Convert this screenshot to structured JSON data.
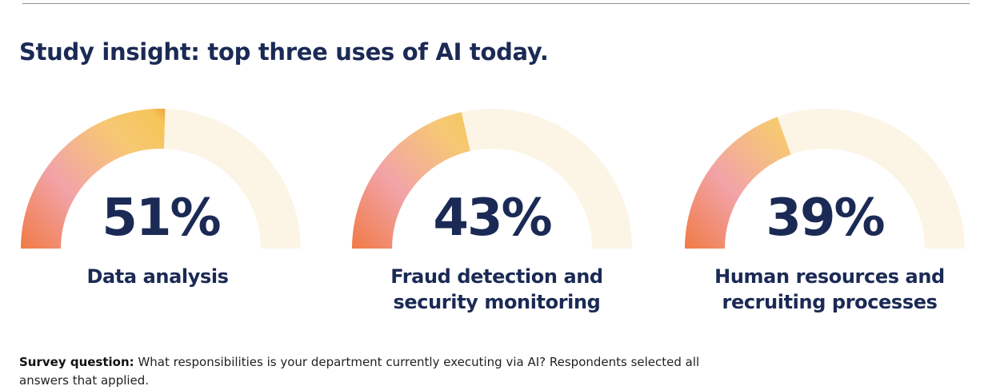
{
  "title": "Study insight: top three uses of AI today.",
  "chart_data": [
    {
      "type": "gauge",
      "categories": [
        "Data analysis"
      ],
      "values": [
        51
      ],
      "value_labels": [
        "51%"
      ],
      "ylim": [
        0,
        100
      ]
    },
    {
      "type": "gauge",
      "categories": [
        "Fraud detection and security monitoring"
      ],
      "values": [
        43
      ],
      "value_labels": [
        "43%"
      ],
      "ylim": [
        0,
        100
      ]
    },
    {
      "type": "gauge",
      "categories": [
        "Human resources and recruiting processes"
      ],
      "values": [
        39
      ],
      "value_labels": [
        "39%"
      ],
      "ylim": [
        0,
        100
      ]
    }
  ],
  "footnote": {
    "label": "Survey question:",
    "text": "What responsibilities is your department currently executing via AI? Respondents selected all answers that applied."
  }
}
